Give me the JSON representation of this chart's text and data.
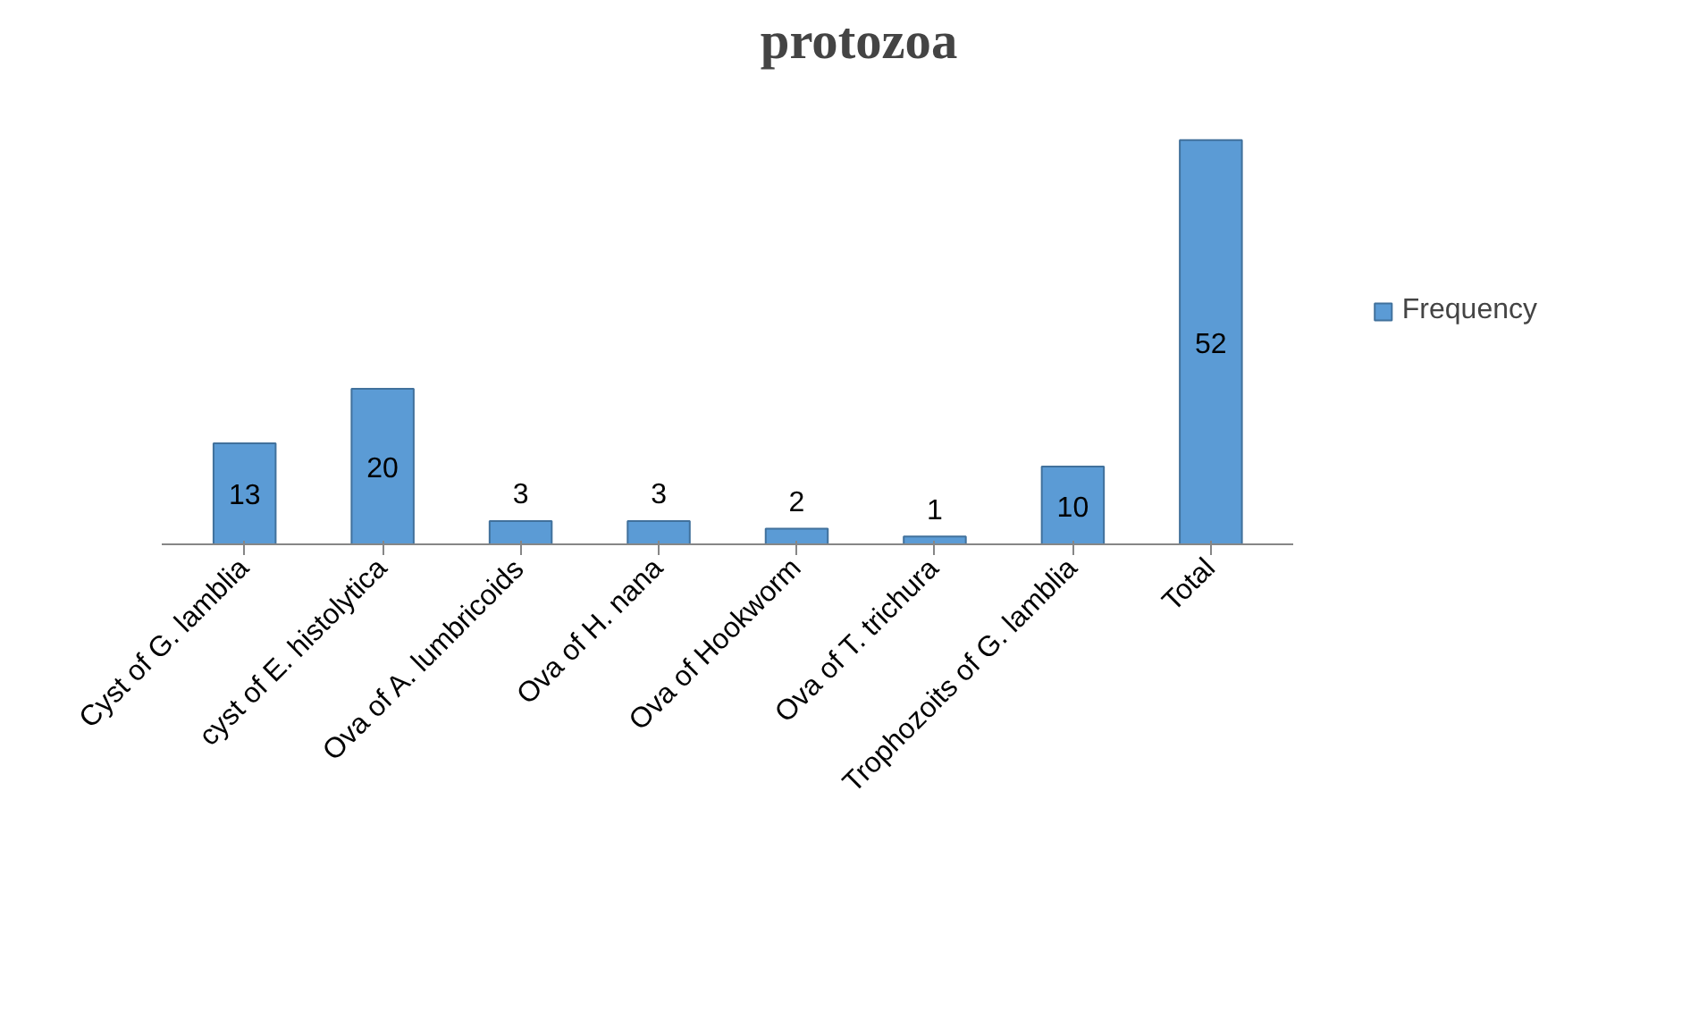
{
  "chart_data": {
    "type": "bar",
    "title": "protozoa",
    "categories": [
      "Cyst of G. lamblia",
      "cyst of E. histolytica",
      "Ova of A. lumbricoids",
      "Ova of H. nana",
      "Ova of Hookworm",
      "Ova of T. trichura",
      "Trophozoits of G. lamblia",
      "Total"
    ],
    "series": [
      {
        "name": "Frequency",
        "color": "#5b9bd5",
        "values": [
          13,
          20,
          3,
          3,
          2,
          1,
          10,
          52
        ]
      }
    ],
    "data_labels": true,
    "legend": "right",
    "grid": false
  }
}
